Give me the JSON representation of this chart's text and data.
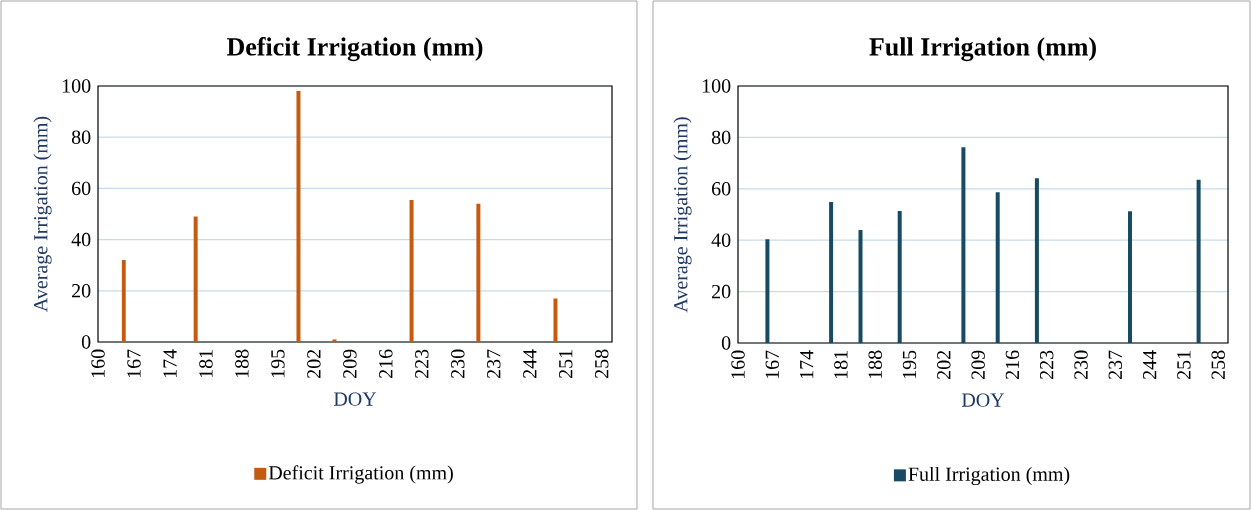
{
  "chart_data": [
    {
      "type": "bar",
      "title": "Deficit Irrigation (mm)",
      "xlabel": "DOY",
      "ylabel": "Average Irrigation (mm)",
      "x": [
        165,
        179,
        199,
        206,
        221,
        234,
        249
      ],
      "series": [
        {
          "name": "Deficit Irrigation (mm)",
          "color": "#c55a11",
          "values": [
            32,
            49,
            98,
            1,
            55.5,
            54,
            17
          ]
        }
      ],
      "xlim": [
        160,
        260
      ],
      "xticks": [
        160,
        167,
        174,
        181,
        188,
        195,
        202,
        209,
        216,
        223,
        230,
        237,
        244,
        251,
        258
      ],
      "ylim": [
        0,
        100
      ],
      "yticks": [
        0,
        20,
        40,
        60,
        80,
        100
      ],
      "grid": "y",
      "legend": "bottom"
    },
    {
      "type": "bar",
      "title": "Full Irrigation (mm)",
      "xlabel": "DOY",
      "ylabel": "Average Irrigation (mm)",
      "x": [
        166,
        179,
        185,
        193,
        206,
        213,
        221,
        240,
        254
      ],
      "series": [
        {
          "name": "Full Irrigation (mm)",
          "color": "#174a63",
          "values": [
            40.4,
            54.9,
            44,
            51.4,
            76.2,
            58.7,
            64.1,
            51.3,
            63.5
          ]
        }
      ],
      "xlim": [
        160,
        260
      ],
      "xticks": [
        160,
        167,
        174,
        181,
        188,
        195,
        202,
        209,
        216,
        223,
        230,
        237,
        244,
        251,
        258
      ],
      "ylim": [
        0,
        100
      ],
      "yticks": [
        0,
        20,
        40,
        60,
        80,
        100
      ],
      "grid": "y",
      "legend": "bottom"
    }
  ]
}
